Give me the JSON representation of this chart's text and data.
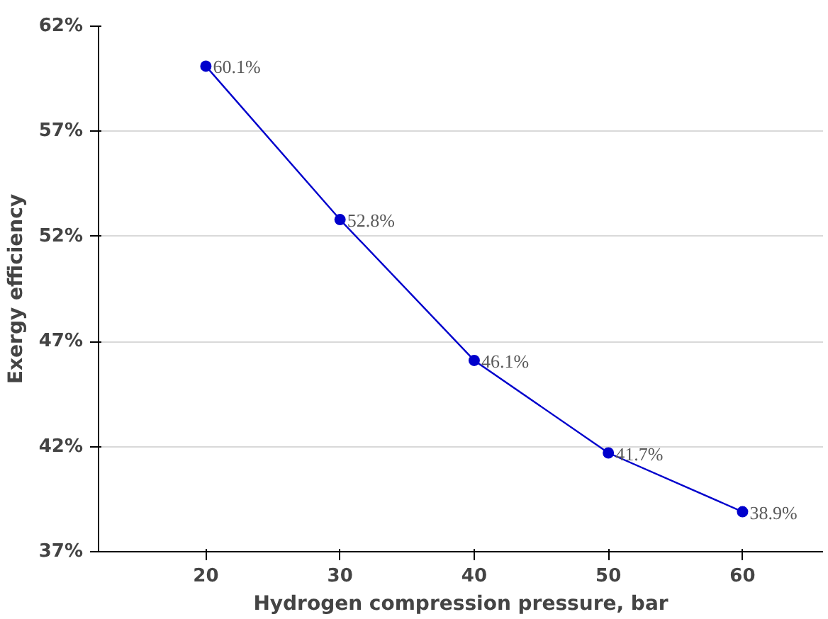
{
  "chart_data": {
    "type": "line",
    "xlabel": "Hydrogen compression pressure, bar",
    "ylabel": "Exergy efficiency",
    "x": [
      20,
      30,
      40,
      50,
      60
    ],
    "series": [
      {
        "color": "#0000cc",
        "values": [
          60.1,
          52.8,
          46.1,
          41.7,
          38.9
        ],
        "value_labels": [
          "60.1%",
          "52.8%",
          "46.1%",
          "41.7%",
          "38.9%"
        ]
      }
    ],
    "xlim": [
      12,
      66
    ],
    "xticks": [
      20,
      30,
      40,
      50,
      60
    ],
    "ylim": [
      37,
      62
    ],
    "yticks": [
      {
        "value": 37,
        "label": "37%"
      },
      {
        "value": 42,
        "label": "42%"
      },
      {
        "value": 47,
        "label": "47%"
      },
      {
        "value": 52,
        "label": "52%"
      },
      {
        "value": 57,
        "label": "57%"
      },
      {
        "value": 62,
        "label": "62%"
      }
    ],
    "grid": "y",
    "marker": "circle",
    "line_style": "solid"
  }
}
